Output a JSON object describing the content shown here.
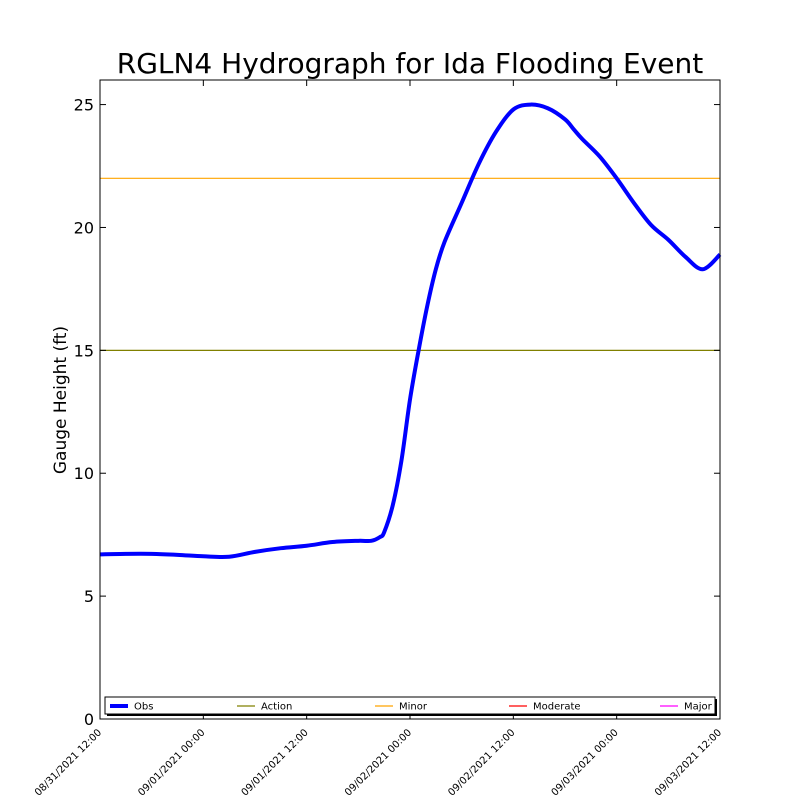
{
  "chart_data": {
    "type": "line",
    "title": "RGLN4 Hydrograph for Ida Flooding Event",
    "xlabel": "",
    "ylabel": "Gauge Height (ft)",
    "ylim": [
      0,
      26
    ],
    "yticks": [
      0,
      5,
      10,
      15,
      20,
      25
    ],
    "xlim": [
      "08/31/2021 12:00",
      "09/03/2021 12:00"
    ],
    "xticks": [
      "08/31/2021 12:00",
      "09/01/2021 00:00",
      "09/01/2021 12:00",
      "09/02/2021 00:00",
      "09/02/2021 12:00",
      "09/03/2021 00:00",
      "09/03/2021 12:00"
    ],
    "grid": false,
    "legend_position": "bottom",
    "series": [
      {
        "name": "Obs",
        "color": "#0000ff",
        "x": [
          "08/31/2021 12:00",
          "08/31/2021 15:00",
          "08/31/2021 18:00",
          "08/31/2021 21:00",
          "09/01/2021 00:00",
          "09/01/2021 03:00",
          "09/01/2021 06:00",
          "09/01/2021 09:00",
          "09/01/2021 12:00",
          "09/01/2021 15:00",
          "09/01/2021 18:00",
          "09/01/2021 19:30",
          "09/01/2021 20:30",
          "09/01/2021 21:00",
          "09/01/2021 22:00",
          "09/01/2021 23:00",
          "09/02/2021 00:00",
          "09/02/2021 01:00",
          "09/02/2021 02:00",
          "09/02/2021 03:00",
          "09/02/2021 04:00",
          "09/02/2021 06:00",
          "09/02/2021 08:00",
          "09/02/2021 10:00",
          "09/02/2021 12:00",
          "09/02/2021 14:00",
          "09/02/2021 16:00",
          "09/02/2021 18:00",
          "09/02/2021 19:00",
          "09/02/2021 20:00",
          "09/02/2021 22:00",
          "09/03/2021 00:00",
          "09/03/2021 02:00",
          "09/03/2021 04:00",
          "09/03/2021 06:00",
          "09/03/2021 08:00",
          "09/03/2021 10:00",
          "09/03/2021 12:00"
        ],
        "values": [
          6.7,
          6.72,
          6.72,
          6.68,
          6.62,
          6.6,
          6.8,
          6.95,
          7.05,
          7.2,
          7.25,
          7.25,
          7.4,
          7.6,
          8.7,
          10.5,
          13.0,
          15.0,
          16.8,
          18.3,
          19.4,
          21.0,
          22.6,
          23.9,
          24.8,
          25.0,
          24.85,
          24.4,
          24.0,
          23.6,
          22.9,
          22.0,
          21.0,
          20.1,
          19.5,
          18.8,
          18.3,
          18.9
        ]
      }
    ],
    "thresholds": [
      {
        "name": "Action",
        "value": 15,
        "color": "#808000"
      },
      {
        "name": "Minor",
        "value": 22,
        "color": "#ffa500"
      },
      {
        "name": "Moderate",
        "value": null,
        "color": "#ff0000"
      },
      {
        "name": "Major",
        "value": null,
        "color": "#ff00ff"
      }
    ],
    "legend": [
      "Obs",
      "Action",
      "Minor",
      "Moderate",
      "Major"
    ]
  }
}
